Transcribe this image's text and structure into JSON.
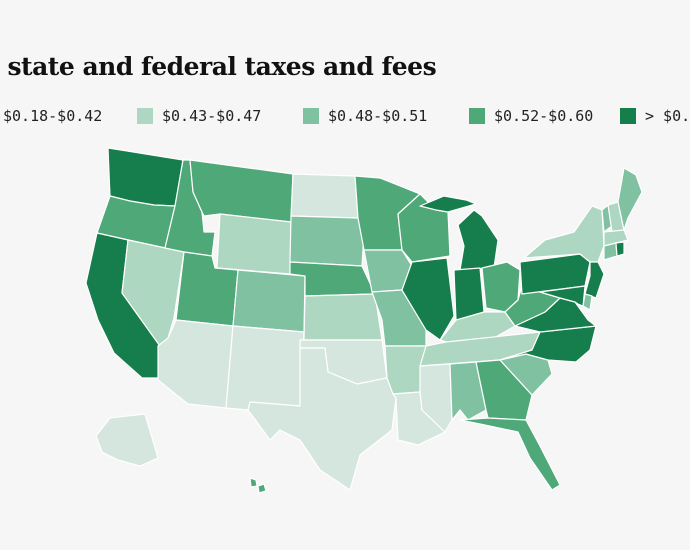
{
  "title": "as state and federal taxes and fees",
  "legend": [
    {
      "label": "$0.18-$0.42",
      "color": "#d5e6de"
    },
    {
      "label": "$0.43-$0.47",
      "color": "#aed7c2"
    },
    {
      "label": "$0.48-$0.51",
      "color": "#80c1a2"
    },
    {
      "label": "$0.52-$0.60",
      "color": "#4fa877"
    },
    {
      "label": "> $0.",
      "color": "#167d4c"
    }
  ],
  "states": {
    "WA": 4,
    "OR": 3,
    "CA": 4,
    "NV": 1,
    "ID": 3,
    "MT": 3,
    "WY": 1,
    "UT": 3,
    "AZ": 0,
    "CO": 2,
    "NM": 0,
    "ND": 0,
    "SD": 2,
    "NE": 3,
    "KS": 1,
    "OK": 0,
    "TX": 0,
    "MN": 3,
    "IA": 2,
    "MO": 2,
    "AR": 1,
    "LA": 0,
    "WI": 3,
    "IL": 4,
    "MI": 4,
    "IN": 4,
    "OH": 3,
    "KY": 1,
    "TN": 1,
    "MS": 0,
    "AL": 2,
    "GA": 3,
    "FL": 3,
    "SC": 2,
    "NC": 4,
    "VA": 4,
    "WV": 3,
    "PA": 4,
    "NY": 1,
    "ME": 2,
    "VT": 2,
    "NH": 1,
    "MA": 1,
    "CT": 2,
    "RI": 4,
    "NJ": 4,
    "DE": 2,
    "MD": 4,
    "AK": 0,
    "HI": 3
  }
}
